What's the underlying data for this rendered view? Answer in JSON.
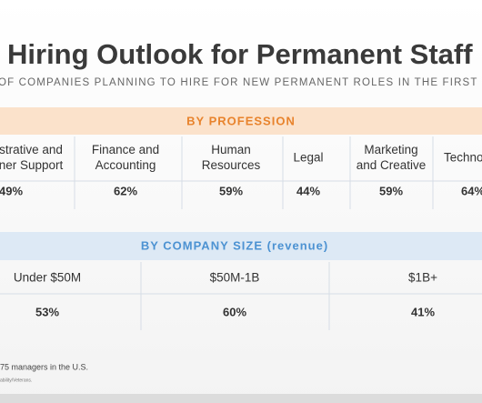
{
  "header": {
    "title": "Hiring Outlook for Permanent Staff",
    "subtitle": "OF COMPANIES PLANNING TO HIRE FOR NEW PERMANENT ROLES IN THE FIRST"
  },
  "profession": {
    "heading": "BY PROFESSION",
    "columns": [
      {
        "name": [
          "strative and",
          "ner Support"
        ],
        "value": "49%"
      },
      {
        "name": [
          "Finance and",
          "Accounting"
        ],
        "value": "62%"
      },
      {
        "name": [
          "Human",
          "Resources"
        ],
        "value": "59%"
      },
      {
        "name": [
          "Legal"
        ],
        "value": "44%"
      },
      {
        "name": [
          "Marketing",
          "and Creative"
        ],
        "value": "59%"
      },
      {
        "name": [
          "Techno"
        ],
        "value": "64%"
      }
    ]
  },
  "company_size": {
    "heading": "BY COMPANY SIZE (revenue)",
    "columns": [
      {
        "name": "Under $50M",
        "value": "53%"
      },
      {
        "name": "$50M-1B",
        "value": "60%"
      },
      {
        "name": "$1B+",
        "value": "41%"
      }
    ]
  },
  "footnotes": [
    "75 managers in the U.S.",
    "ability/Veterans."
  ]
}
